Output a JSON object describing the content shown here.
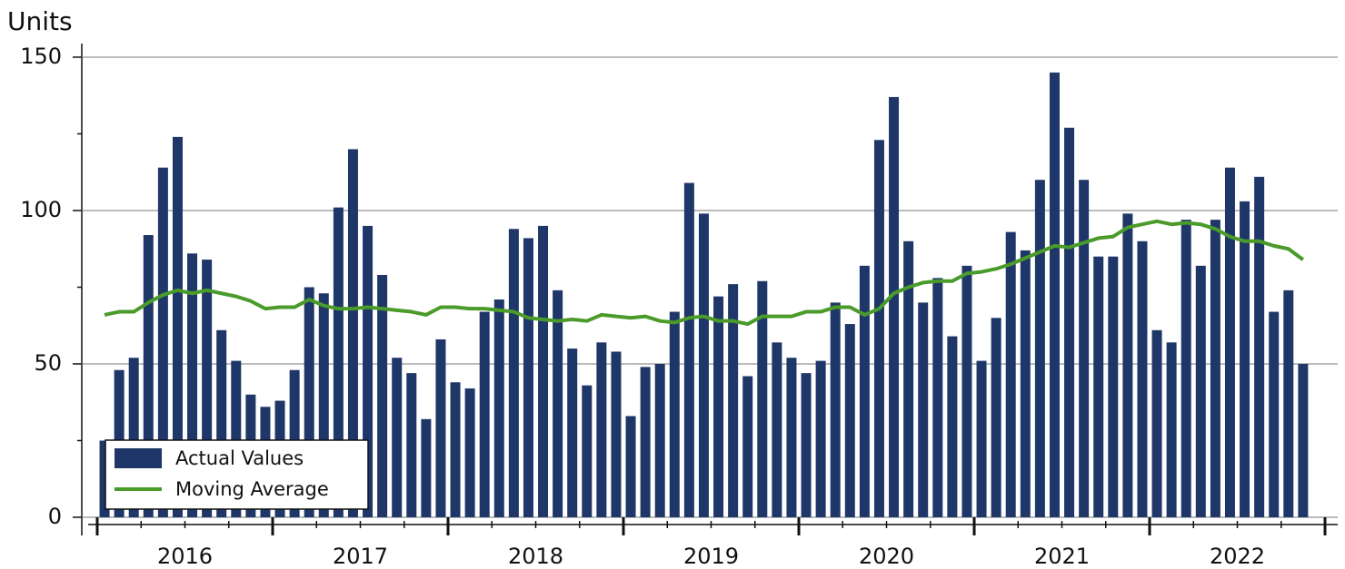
{
  "chart_data": {
    "type": "bar",
    "y_label": "Units",
    "categories": [
      "2016",
      null,
      null,
      null,
      null,
      null,
      null,
      null,
      null,
      null,
      null,
      null,
      "2017",
      null,
      null,
      null,
      null,
      null,
      null,
      null,
      null,
      null,
      null,
      null,
      "2018",
      null,
      null,
      null,
      null,
      null,
      null,
      null,
      null,
      null,
      null,
      null,
      "2019",
      null,
      null,
      null,
      null,
      null,
      null,
      null,
      null,
      null,
      null,
      null,
      "2020",
      null,
      null,
      null,
      null,
      null,
      null,
      null,
      null,
      null,
      null,
      null,
      "2021",
      null,
      null,
      null,
      null,
      null,
      null,
      null,
      null,
      null,
      null,
      null,
      "2022",
      null,
      null,
      null,
      null,
      null,
      null,
      null,
      null,
      null,
      null
    ],
    "series": [
      {
        "name": "Actual Values",
        "color": "#1f3768",
        "type": "bar",
        "values": [
          25,
          48,
          52,
          92,
          114,
          124,
          86,
          84,
          61,
          51,
          40,
          36,
          38,
          48,
          75,
          73,
          101,
          120,
          95,
          79,
          52,
          47,
          32,
          58,
          44,
          42,
          67,
          71,
          94,
          91,
          95,
          74,
          55,
          43,
          57,
          54,
          33,
          49,
          50,
          67,
          109,
          99,
          72,
          76,
          46,
          77,
          57,
          52,
          47,
          51,
          70,
          63,
          82,
          123,
          137,
          90,
          70,
          78,
          59,
          82,
          51,
          65,
          93,
          87,
          110,
          145,
          127,
          110,
          85,
          85,
          99,
          90,
          61,
          57,
          97,
          82,
          97,
          114,
          103,
          111,
          67,
          74,
          50
        ]
      },
      {
        "name": "Moving Average",
        "color": "#4a9b2a",
        "type": "line",
        "values": [
          66,
          67,
          67,
          70,
          72.5,
          74,
          73,
          74,
          73,
          72,
          70.5,
          68,
          68.5,
          68.5,
          71,
          69,
          68,
          68,
          68.5,
          68,
          67.5,
          67,
          66,
          68.5,
          68.5,
          68,
          68,
          67.5,
          67,
          65,
          64.5,
          64,
          64.5,
          64,
          66,
          65.5,
          65,
          65.5,
          64,
          63.5,
          65,
          65.5,
          64,
          64,
          63,
          65.5,
          65.5,
          65.5,
          67,
          67,
          68.5,
          68.5,
          66,
          68,
          73,
          75,
          76.5,
          77,
          77,
          79.5,
          80,
          81,
          82.5,
          84.5,
          86.5,
          88.5,
          88,
          89.5,
          91,
          91.5,
          94.5,
          95.5,
          96.5,
          95.5,
          96,
          95.5,
          94,
          91.5,
          90,
          90,
          88.5,
          87.5,
          84
        ]
      }
    ],
    "ylim": [
      0,
      150
    ],
    "yticks": [
      0,
      50,
      100,
      150
    ],
    "yminorticks": [
      25,
      75,
      125
    ],
    "grid": true,
    "legend": "lower left"
  }
}
